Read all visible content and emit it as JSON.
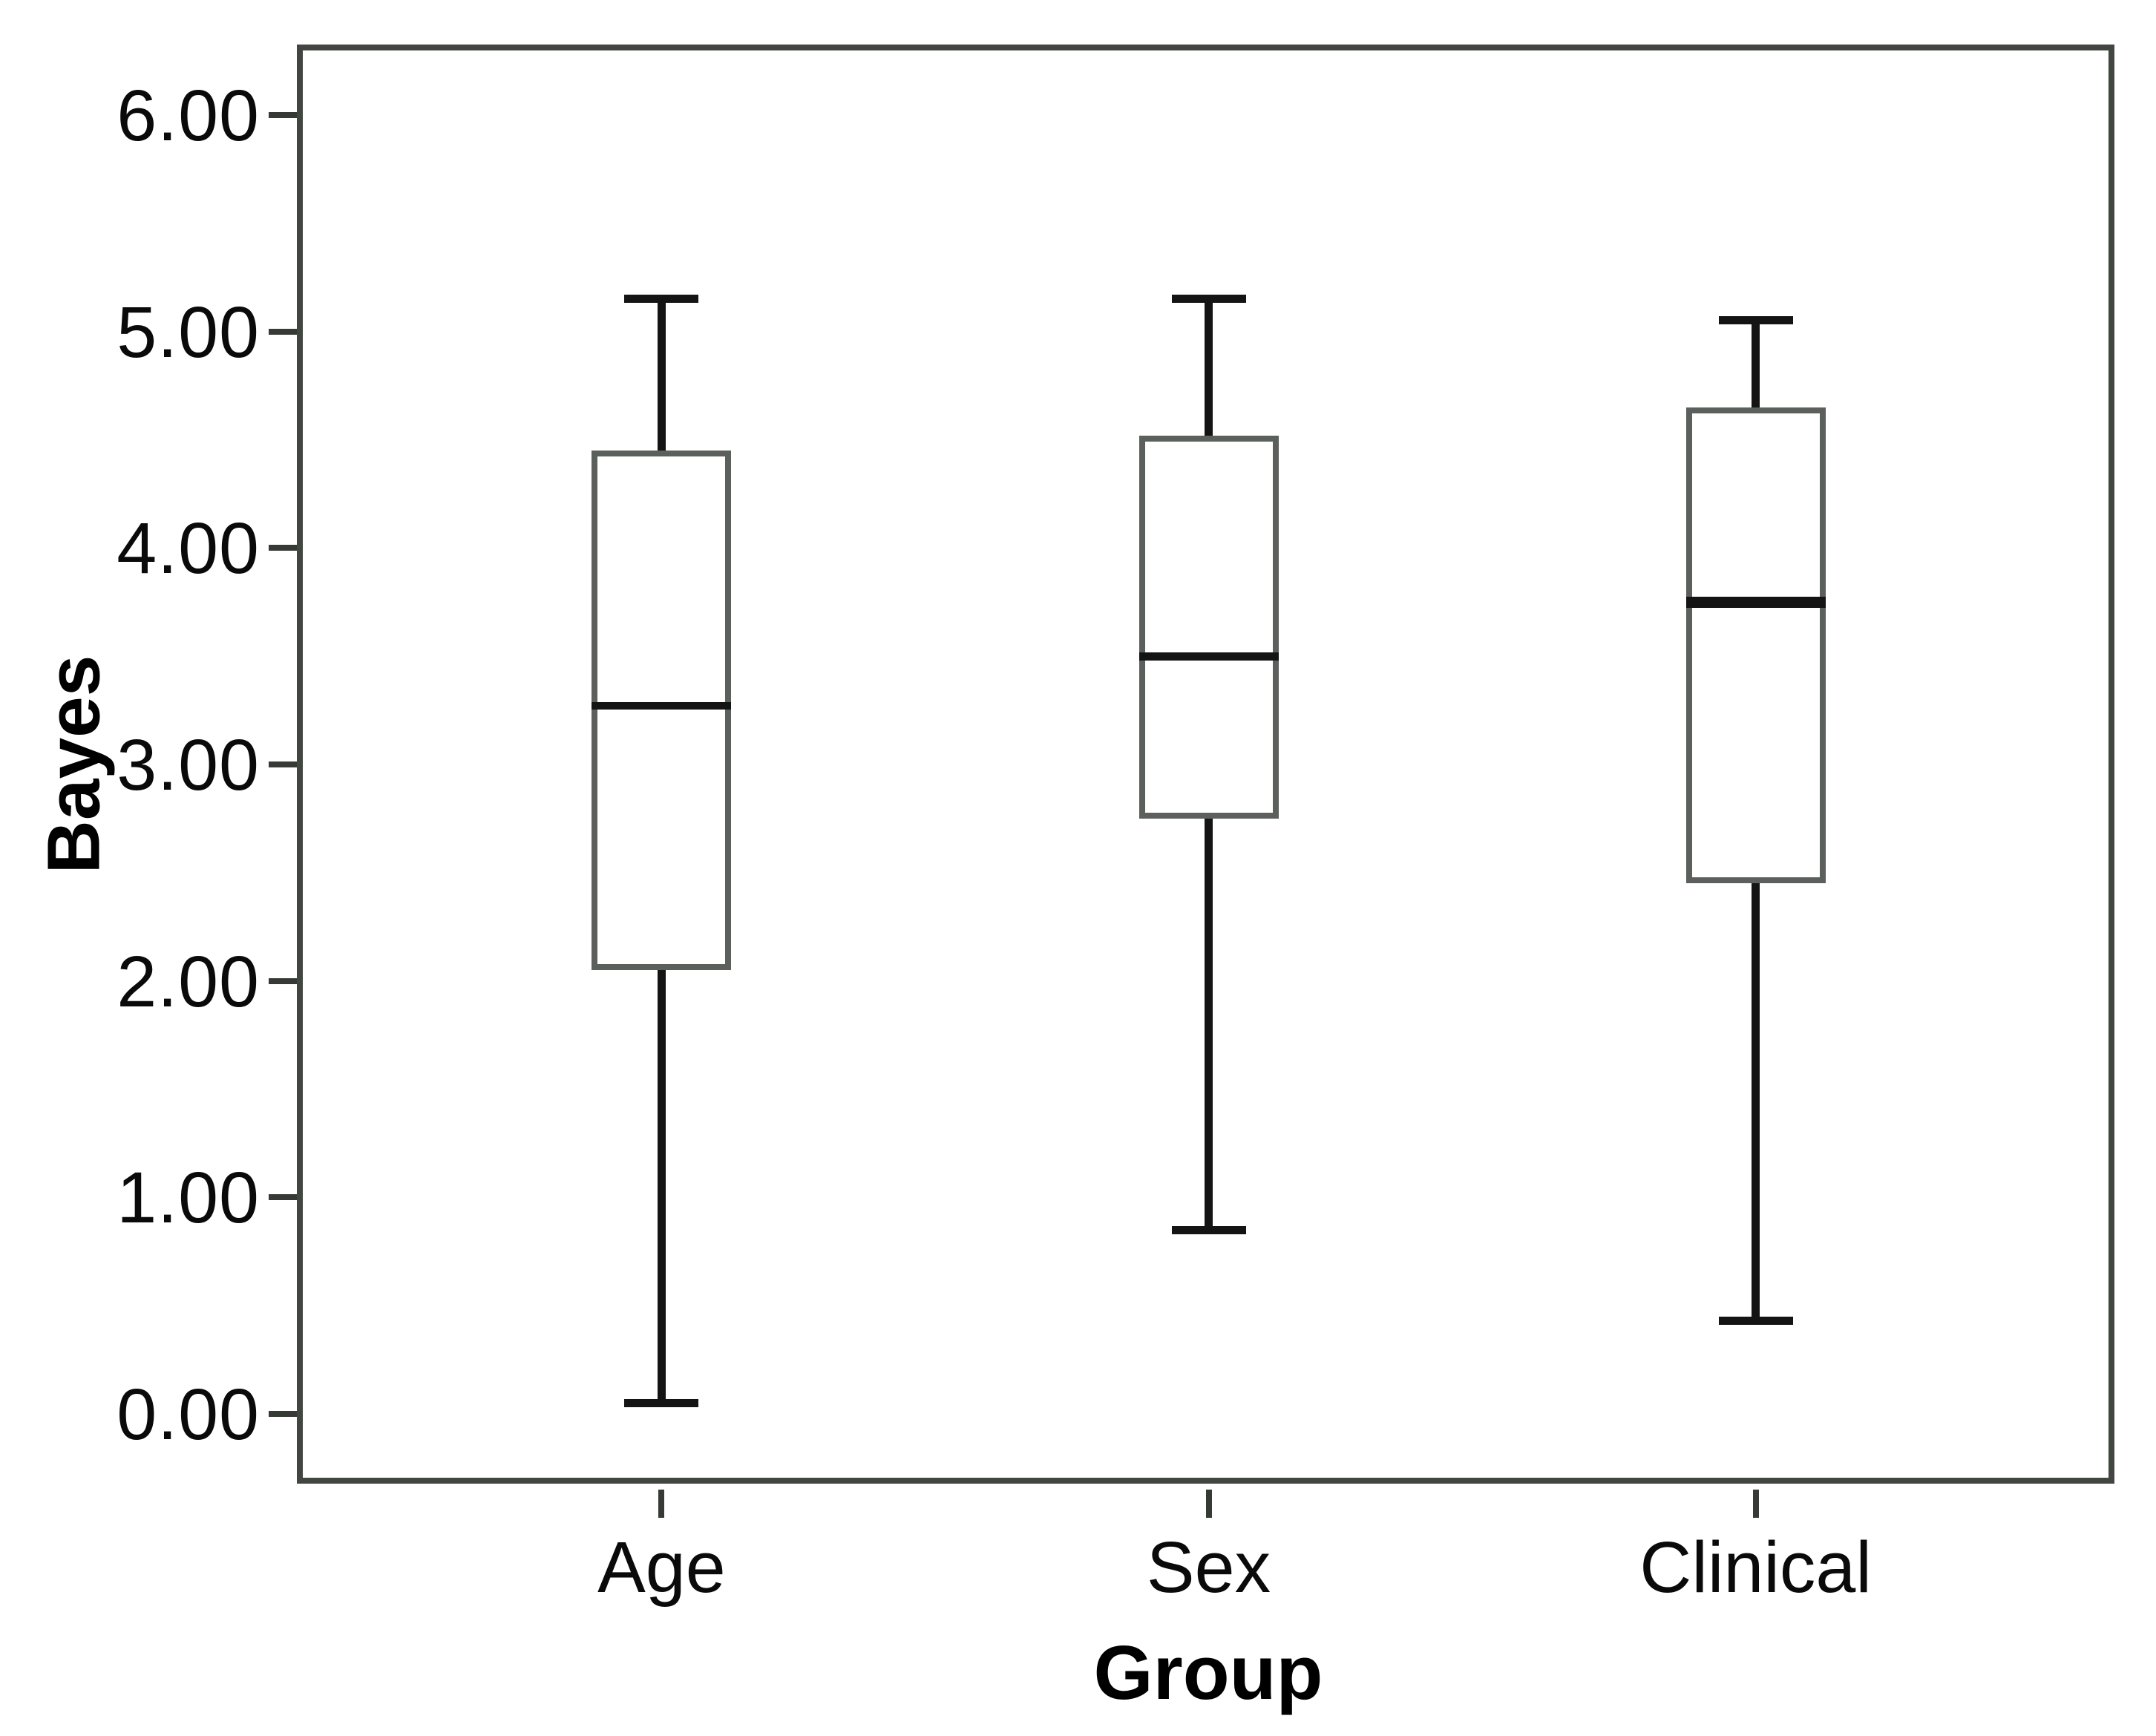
{
  "figure": {
    "background_color": "#ffffff",
    "title": ""
  },
  "chart_data": {
    "type": "box",
    "title": "",
    "xlabel": "Group",
    "ylabel": "Bayes",
    "categories": [
      "Age",
      "Sex",
      "Clinical"
    ],
    "y_tick_labels": [
      "6.00",
      "5.00",
      "4.00",
      "3.00",
      "2.00",
      "1.00",
      "0.00"
    ],
    "y_tick_values": [
      6,
      5,
      4,
      3,
      2,
      1,
      0
    ],
    "ylim": [
      -0.35,
      6.33
    ],
    "grid": false,
    "legend": "none",
    "series": [
      {
        "category": "Age",
        "min": 0.05,
        "q1": 2.05,
        "median": 3.27,
        "q3": 4.45,
        "max": 5.15
      },
      {
        "category": "Sex",
        "min": 0.85,
        "q1": 2.75,
        "median": 3.5,
        "q3": 4.52,
        "max": 5.15
      },
      {
        "category": "Clinical",
        "min": 0.43,
        "q1": 2.45,
        "median": 3.75,
        "q3": 4.65,
        "max": 5.05
      }
    ],
    "style_hints": {
      "box_fill": "#ffffff",
      "box_border_color": "#5c605c",
      "whisker_color": "#141414",
      "median_color": "#000000",
      "frame_color": "#414641",
      "text_color": "#000000",
      "median_thickness_px": [
        10,
        11,
        15
      ]
    }
  }
}
